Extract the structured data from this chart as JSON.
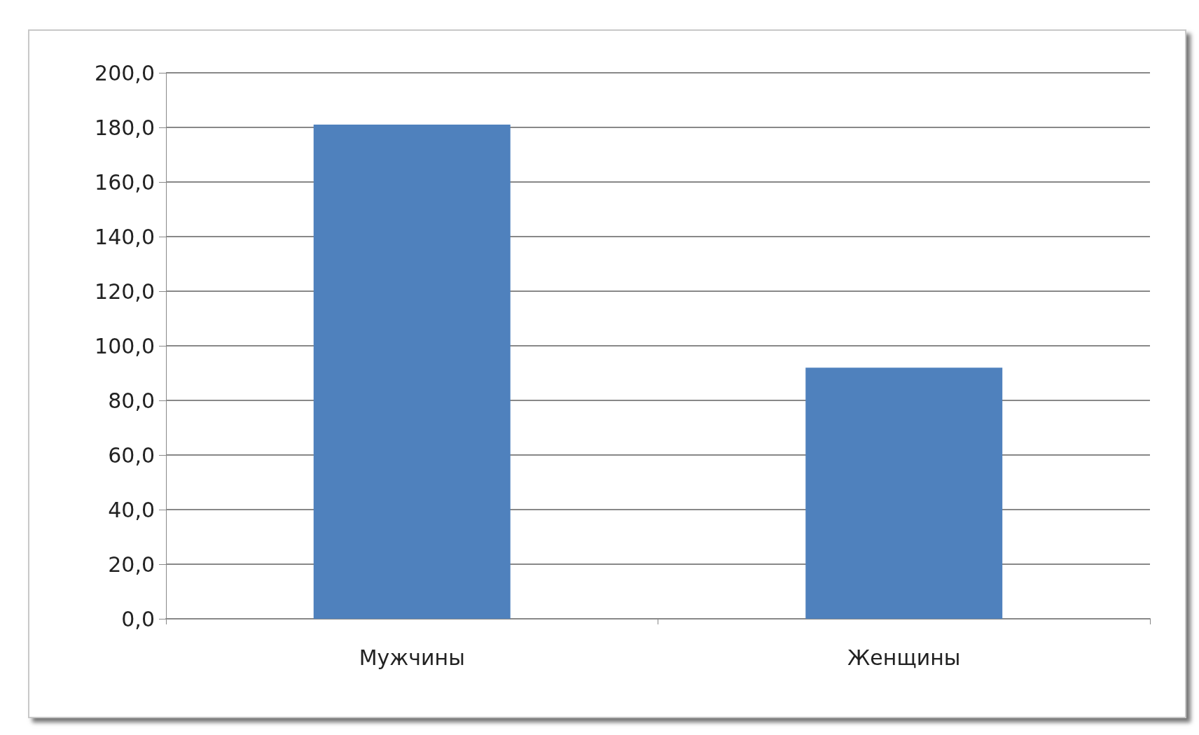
{
  "chart_data": {
    "type": "bar",
    "categories": [
      "Мужчины",
      "Женщины"
    ],
    "values": [
      181,
      92
    ],
    "color": "#4f81bd",
    "ylim": [
      0,
      200
    ],
    "yticks": [
      {
        "value": 0,
        "label": "0,0"
      },
      {
        "value": 20,
        "label": "20,0"
      },
      {
        "value": 40,
        "label": "40,0"
      },
      {
        "value": 60,
        "label": "60,0"
      },
      {
        "value": 80,
        "label": "80,0"
      },
      {
        "value": 100,
        "label": "100,0"
      },
      {
        "value": 120,
        "label": "120,0"
      },
      {
        "value": 140,
        "label": "140,0"
      },
      {
        "value": 160,
        "label": "160,0"
      },
      {
        "value": 180,
        "label": "180,0"
      },
      {
        "value": 200,
        "label": "200,0"
      }
    ],
    "grid": "y"
  }
}
